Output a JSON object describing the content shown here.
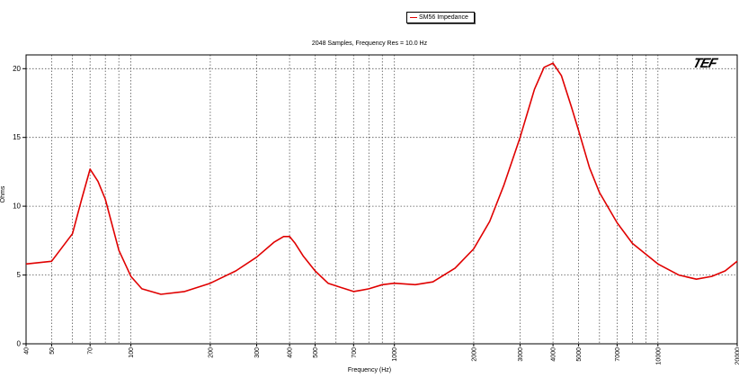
{
  "logo_text": "TEF",
  "chart_data": {
    "type": "line",
    "title": "2048 Samples, Frequency Res = 10.0 Hz",
    "xlabel": "Frequency (Hz)",
    "ylabel": "Ohms",
    "xscale": "log",
    "xlim": [
      40,
      20000
    ],
    "ylim": [
      0,
      21
    ],
    "grid": true,
    "legend_position": "top-center",
    "x_tick_labels": [
      {
        "value": 40,
        "label": "40"
      },
      {
        "value": 50,
        "label": "50"
      },
      {
        "value": 70,
        "label": "70"
      },
      {
        "value": 100,
        "label": "100"
      },
      {
        "value": 200,
        "label": "200"
      },
      {
        "value": 300,
        "label": "300"
      },
      {
        "value": 400,
        "label": "400"
      },
      {
        "value": 500,
        "label": "500"
      },
      {
        "value": 700,
        "label": "700"
      },
      {
        "value": 1000,
        "label": "1000"
      },
      {
        "value": 2000,
        "label": "2000"
      },
      {
        "value": 3000,
        "label": "3000"
      },
      {
        "value": 4000,
        "label": "4000"
      },
      {
        "value": 5000,
        "label": "5000"
      },
      {
        "value": 7000,
        "label": "7000"
      },
      {
        "value": 10000,
        "label": "10000"
      },
      {
        "value": 20000,
        "label": "20000"
      }
    ],
    "x_grid_values": [
      40,
      50,
      60,
      70,
      80,
      90,
      100,
      200,
      300,
      400,
      500,
      600,
      700,
      800,
      900,
      1000,
      2000,
      3000,
      4000,
      5000,
      6000,
      7000,
      8000,
      9000,
      10000,
      20000
    ],
    "y_ticks": [
      0,
      5,
      10,
      15,
      20
    ],
    "series": [
      {
        "name": "SM56 Impedance",
        "color": "#e00000",
        "x": [
          40,
          50,
          60,
          65,
          70,
          75,
          80,
          90,
          100,
          110,
          130,
          160,
          200,
          250,
          300,
          350,
          380,
          400,
          420,
          450,
          500,
          560,
          650,
          700,
          750,
          800,
          900,
          1000,
          1200,
          1400,
          1700,
          2000,
          2300,
          2600,
          3000,
          3400,
          3700,
          4000,
          4300,
          4700,
          5000,
          5500,
          6000,
          7000,
          8000,
          10000,
          12000,
          14000,
          16000,
          18000,
          20000
        ],
        "values": [
          5.8,
          6.0,
          8.0,
          10.5,
          12.7,
          11.8,
          10.5,
          6.8,
          4.9,
          4.0,
          3.6,
          3.8,
          4.4,
          5.3,
          6.3,
          7.4,
          7.8,
          7.8,
          7.3,
          6.4,
          5.3,
          4.4,
          4.0,
          3.8,
          3.9,
          4.0,
          4.3,
          4.4,
          4.3,
          4.5,
          5.5,
          6.9,
          8.9,
          11.5,
          15.0,
          18.5,
          20.1,
          20.4,
          19.5,
          17.2,
          15.5,
          12.8,
          11.0,
          8.8,
          7.3,
          5.8,
          5.0,
          4.7,
          4.9,
          5.3,
          6.0
        ]
      }
    ]
  }
}
